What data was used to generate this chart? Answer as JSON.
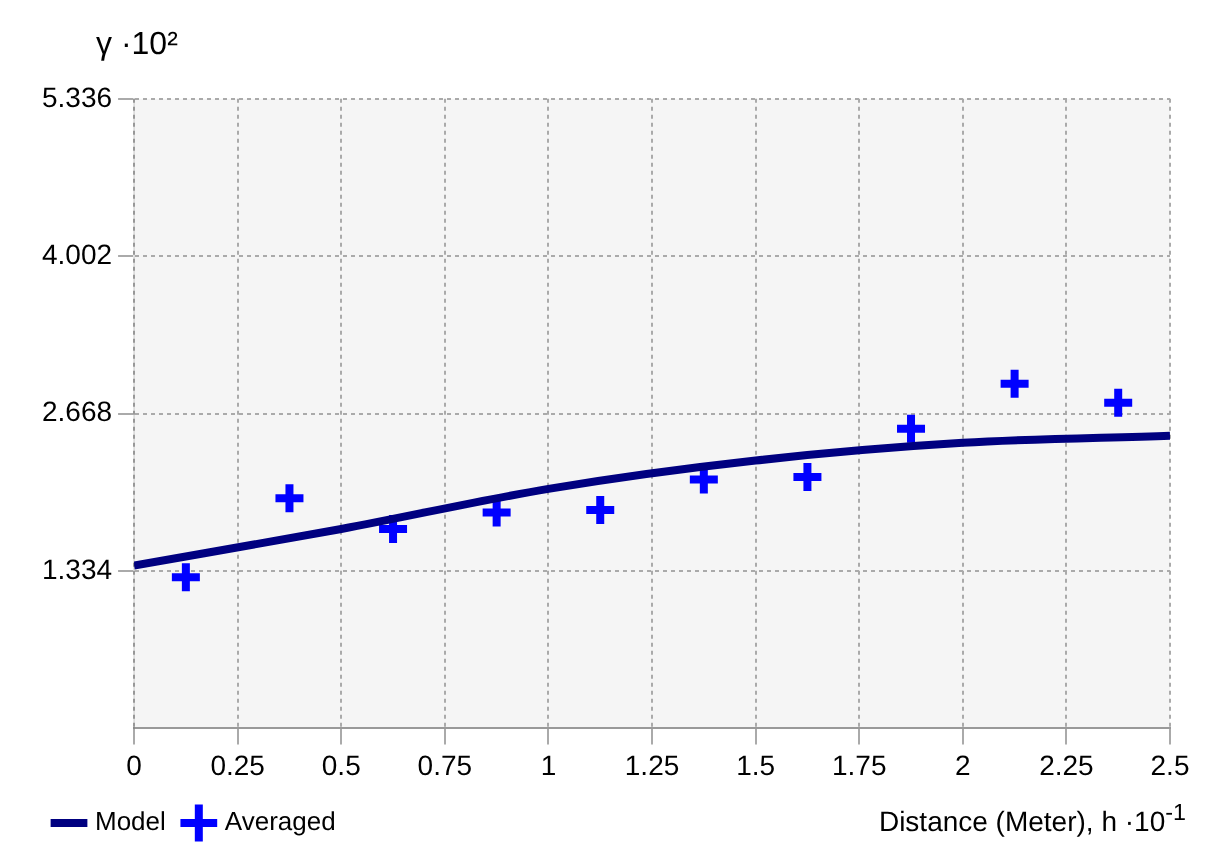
{
  "chart_data": {
    "type": "scatter",
    "ylabel": "γ ·10²",
    "xlabel": "Distance (Meter), h ·10$^{-1}$",
    "xlim": [
      0,
      2.5
    ],
    "xticks": [
      0,
      0.25,
      0.5,
      0.75,
      1,
      1.25,
      1.5,
      1.75,
      2,
      2.25,
      2.5
    ],
    "ylim": [
      0,
      5.336
    ],
    "yticks": [
      1.334,
      2.668,
      4.002,
      5.336
    ],
    "grid": true,
    "legend": "bottom left",
    "series": [
      {
        "name": "Model",
        "type": "line",
        "marker": "none",
        "color": "#000080",
        "x": [
          0,
          0.5,
          1,
          1.5,
          2,
          2.5
        ],
        "values": [
          1.38,
          1.69,
          2.03,
          2.27,
          2.42,
          2.48
        ]
      },
      {
        "name": "Averaged",
        "marker": "cross",
        "color": "#0000ff",
        "x": [
          0.125,
          0.375,
          0.625,
          0.875,
          1.125,
          1.375,
          1.625,
          1.875,
          2.125,
          2.375
        ],
        "values": [
          1.28,
          1.95,
          1.69,
          1.83,
          1.85,
          2.11,
          2.13,
          2.54,
          2.92,
          2.76
        ]
      }
    ]
  }
}
